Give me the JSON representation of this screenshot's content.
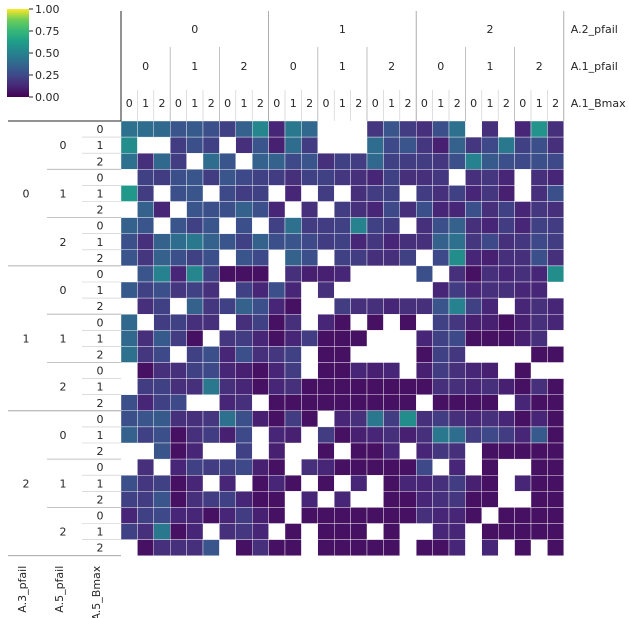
{
  "chart_data": {
    "type": "heatmap",
    "title": "",
    "colormap": "viridis",
    "colorbar": {
      "ticks": [
        "0.00",
        "0.25",
        "0.50",
        "0.75",
        "1.00"
      ],
      "range": [
        0,
        1
      ]
    },
    "column_levels": [
      {
        "name": "A.2_pfail",
        "values": [
          "0",
          "1",
          "2"
        ]
      },
      {
        "name": "A.1_pfail",
        "values": [
          "0",
          "1",
          "2"
        ]
      },
      {
        "name": "A.1_Bmax",
        "values": [
          "0",
          "1",
          "2"
        ]
      }
    ],
    "row_levels": [
      {
        "name": "A.3_pfail",
        "values": [
          "0",
          "1",
          "2"
        ]
      },
      {
        "name": "A.5_pfail",
        "values": [
          "0",
          "1",
          "2"
        ]
      },
      {
        "name": "A.5_Bmax",
        "values": [
          "0",
          "1",
          "2"
        ]
      }
    ],
    "values": [
      [
        0.42,
        0.4,
        0.38,
        0.3,
        0.32,
        0.28,
        0.22,
        0.35,
        0.52,
        0.12,
        0.45,
        0.38,
        null,
        null,
        null,
        0.18,
        0.3,
        0.2,
        0.15,
        0.28,
        0.42,
        null,
        0.15,
        null,
        0.12,
        0.58,
        0.15
      ],
      [
        0.55,
        null,
        null,
        0.2,
        0.28,
        0.22,
        null,
        0.15,
        0.3,
        0.1,
        0.4,
        0.2,
        null,
        null,
        null,
        0.4,
        0.25,
        0.3,
        0.18,
        0.1,
        0.35,
        0.18,
        0.25,
        0.45,
        0.22,
        0.28,
        0.15
      ],
      [
        0.42,
        0.15,
        0.38,
        0.2,
        null,
        0.4,
        0.3,
        null,
        0.35,
        0.35,
        0.25,
        0.3,
        0.15,
        0.22,
        0.2,
        0.38,
        0.22,
        0.2,
        0.2,
        0.18,
        0.28,
        0.5,
        0.32,
        0.28,
        0.25,
        0.28,
        0.25
      ],
      [
        null,
        0.22,
        0.2,
        0.28,
        0.3,
        0.2,
        0.3,
        0.25,
        0.22,
        0.2,
        0.15,
        0.22,
        0.22,
        0.18,
        0.15,
        0.12,
        0.22,
        0.15,
        0.15,
        0.18,
        null,
        0.15,
        0.18,
        0.12,
        null,
        0.15,
        0.12
      ],
      [
        0.6,
        0.2,
        null,
        0.28,
        0.3,
        null,
        0.25,
        0.2,
        0.22,
        null,
        0.12,
        null,
        0.2,
        null,
        0.15,
        0.2,
        0.22,
        null,
        0.2,
        0.15,
        0.22,
        0.12,
        0.18,
        0.1,
        null,
        0.15,
        0.28
      ],
      [
        null,
        0.35,
        0.12,
        null,
        0.3,
        0.28,
        0.28,
        0.35,
        0.28,
        0.12,
        null,
        0.15,
        null,
        0.2,
        0.15,
        0.12,
        0.25,
        0.15,
        0.28,
        0.12,
        0.12,
        0.28,
        0.15,
        0.22,
        0.12,
        0.18,
        0.15
      ],
      [
        0.35,
        0.3,
        null,
        0.3,
        0.22,
        0.3,
        null,
        0.28,
        null,
        0.22,
        0.42,
        0.2,
        0.2,
        0.22,
        0.5,
        0.22,
        0.2,
        null,
        0.15,
        0.28,
        0.35,
        0.15,
        0.12,
        0.2,
        0.12,
        0.22,
        0.2
      ],
      [
        0.28,
        0.15,
        0.35,
        0.4,
        0.45,
        0.35,
        0.3,
        0.22,
        0.35,
        0.28,
        0.3,
        0.25,
        0.2,
        0.22,
        0.12,
        0.18,
        0.12,
        0.15,
        0.15,
        0.35,
        0.42,
        0.18,
        0.25,
        0.15,
        0.18,
        0.25,
        0.2
      ],
      [
        0.3,
        0.18,
        0.35,
        0.28,
        0.22,
        0.28,
        null,
        0.3,
        0.25,
        null,
        0.35,
        0.28,
        null,
        0.22,
        0.2,
        0.15,
        0.15,
        0.22,
        null,
        0.25,
        0.55,
        0.12,
        0.1,
        0.15,
        0.15,
        0.28,
        0.15
      ],
      [
        null,
        0.3,
        0.5,
        0.12,
        0.52,
        0.22,
        0.05,
        0.05,
        0.05,
        null,
        0.15,
        0.1,
        0.1,
        0.12,
        null,
        null,
        null,
        null,
        0.28,
        null,
        0.15,
        0.05,
        0.15,
        0.12,
        0.15,
        0.12,
        0.55
      ],
      [
        0.32,
        0.22,
        0.28,
        0.18,
        0.22,
        0.15,
        null,
        0.22,
        0.12,
        0.28,
        0.12,
        null,
        0.15,
        null,
        null,
        null,
        null,
        null,
        null,
        0.12,
        0.2,
        0.12,
        0.15,
        0.15,
        0.12,
        0.12,
        null
      ],
      [
        null,
        0.15,
        0.22,
        null,
        0.35,
        0.18,
        0.22,
        0.35,
        0.28,
        0.12,
        0.05,
        null,
        null,
        0.2,
        0.15,
        0.15,
        0.12,
        0.15,
        0.15,
        0.3,
        0.5,
        0.22,
        0.12,
        null,
        0.12,
        0.15,
        0.12
      ],
      [
        0.38,
        null,
        0.2,
        0.22,
        0.15,
        0.15,
        null,
        0.15,
        0.22,
        0.05,
        0.15,
        null,
        0.12,
        0.05,
        null,
        0.05,
        null,
        0.05,
        null,
        0.22,
        0.18,
        0.1,
        0.1,
        0.05,
        0.1,
        0.15,
        0.12
      ],
      [
        0.38,
        0.15,
        0.32,
        0.2,
        0.05,
        null,
        0.18,
        0.2,
        0.12,
        0.05,
        0.12,
        0.2,
        0.05,
        0.05,
        0.05,
        null,
        null,
        null,
        0.12,
        0.22,
        0.25,
        0.05,
        0.05,
        0.05,
        0.1,
        0.15,
        null
      ],
      [
        0.42,
        0.18,
        0.25,
        null,
        0.22,
        0.28,
        0.12,
        0.28,
        0.15,
        0.18,
        0.22,
        null,
        0.05,
        0.05,
        null,
        null,
        null,
        null,
        0.05,
        0.22,
        0.18,
        null,
        null,
        null,
        null,
        0.05,
        0.05
      ],
      [
        null,
        0.05,
        0.15,
        0.15,
        0.22,
        0.25,
        0.12,
        0.1,
        0.05,
        0.12,
        0.2,
        null,
        0.05,
        0.05,
        0.12,
        0.1,
        0.12,
        null,
        0.1,
        0.2,
        0.15,
        0.12,
        0.1,
        null,
        0.05,
        null,
        null
      ],
      [
        null,
        0.2,
        0.22,
        0.15,
        0.15,
        0.45,
        0.15,
        0.12,
        0.05,
        0.12,
        0.15,
        0.05,
        0.05,
        0.05,
        0.05,
        0.05,
        0.05,
        0.05,
        0.05,
        0.15,
        0.15,
        0.12,
        0.15,
        0.1,
        0.05,
        0.15,
        0.05
      ],
      [
        0.28,
        0.12,
        0.22,
        0.25,
        null,
        null,
        0.12,
        0.15,
        null,
        0.05,
        0.05,
        0.05,
        0.05,
        0.05,
        0.05,
        0.05,
        0.05,
        0.05,
        null,
        0.05,
        0.05,
        0.05,
        0.05,
        null,
        0.12,
        0.05,
        0.05
      ],
      [
        0.28,
        0.3,
        0.32,
        0.15,
        0.15,
        0.18,
        0.42,
        0.28,
        0.1,
        0.05,
        0.2,
        0.05,
        null,
        0.12,
        0.15,
        0.45,
        0.2,
        0.55,
        0.15,
        0.2,
        0.15,
        0.12,
        0.15,
        0.12,
        0.05,
        0.12,
        0.05
      ],
      [
        0.35,
        0.22,
        0.28,
        0.05,
        0.15,
        0.2,
        0.1,
        0.25,
        null,
        0.12,
        0.1,
        null,
        0.2,
        0.05,
        0.1,
        0.12,
        0.15,
        0.1,
        0.15,
        0.45,
        0.4,
        0.2,
        0.25,
        0.2,
        0.12,
        0.32,
        0.05
      ],
      [
        null,
        null,
        0.3,
        0.05,
        0.12,
        null,
        null,
        0.22,
        null,
        0.1,
        null,
        null,
        0.05,
        null,
        0.05,
        0.05,
        0.12,
        null,
        0.12,
        0.18,
        0.15,
        null,
        0.05,
        0.05,
        0.05,
        0.05,
        0.05
      ],
      [
        null,
        0.15,
        null,
        0.12,
        0.22,
        0.2,
        0.22,
        0.25,
        0.1,
        0.05,
        null,
        0.15,
        0.12,
        0.05,
        0.05,
        0.05,
        0.05,
        0.05,
        0.25,
        null,
        0.12,
        null,
        0.05,
        null,
        null,
        0.05,
        0.05
      ],
      [
        0.28,
        0.18,
        0.22,
        0.05,
        0.12,
        null,
        0.12,
        null,
        0.05,
        0.12,
        0.05,
        null,
        0.05,
        null,
        0.12,
        null,
        0.05,
        0.12,
        0.12,
        0.15,
        0.2,
        0.1,
        0.05,
        null,
        0.12,
        0.05,
        0.05
      ],
      [
        0.22,
        0.2,
        0.3,
        0.05,
        0.15,
        0.2,
        0.22,
        0.12,
        0.05,
        0.05,
        null,
        0.12,
        null,
        0.12,
        null,
        null,
        0.05,
        0.05,
        0.12,
        0.15,
        0.18,
        0.05,
        0.05,
        null,
        null,
        0.05,
        0.05
      ],
      [
        0.12,
        0.22,
        0.25,
        0.12,
        0.12,
        0.05,
        0.12,
        0.2,
        0.1,
        0.05,
        null,
        0.05,
        0.05,
        0.05,
        0.05,
        0.05,
        0.05,
        0.05,
        0.15,
        0.12,
        0.12,
        0.05,
        null,
        0.05,
        0.05,
        0.05,
        0.05
      ],
      [
        0.22,
        0.15,
        0.45,
        0.05,
        0.12,
        null,
        0.15,
        0.18,
        0.12,
        null,
        0.05,
        null,
        0.05,
        0.05,
        0.05,
        null,
        0.05,
        null,
        null,
        0.12,
        0.12,
        null,
        0.05,
        0.05,
        0.05,
        0.05,
        0.05
      ],
      [
        null,
        0.05,
        0.15,
        0.15,
        0.15,
        0.3,
        null,
        0.05,
        0.15,
        0.05,
        0.05,
        null,
        0.05,
        0.05,
        0.05,
        0.05,
        0.05,
        null,
        0.05,
        0.05,
        0.12,
        null,
        0.12,
        null,
        0.05,
        null,
        0.05
      ]
    ]
  }
}
